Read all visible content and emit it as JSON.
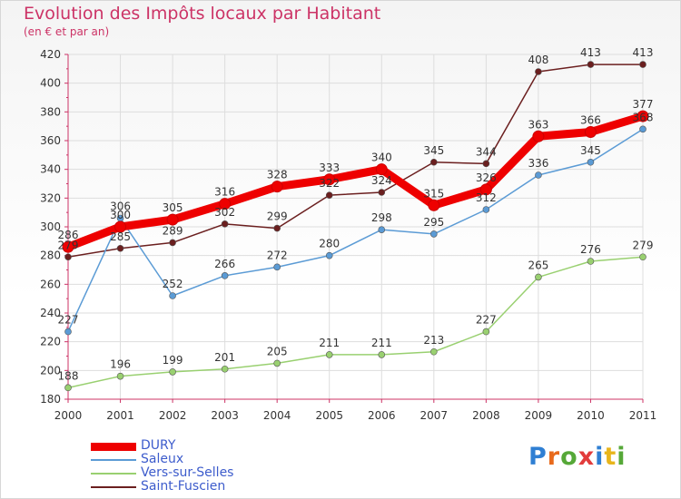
{
  "title": "Evolution des Impôts locaux par Habitant",
  "subtitle": "(en € et par an)",
  "logo": {
    "text": "Proxiti",
    "colors": [
      "#2f7fd3",
      "#e86a1c",
      "#56a838",
      "#e23c3c",
      "#2f7fd3",
      "#e8b51c",
      "#56a838"
    ]
  },
  "chart_data": {
    "type": "line",
    "x": [
      "2000",
      "2001",
      "2002",
      "2003",
      "2004",
      "2005",
      "2006",
      "2007",
      "2008",
      "2009",
      "2010",
      "2011"
    ],
    "ylim": [
      180,
      420
    ],
    "yticks": [
      180,
      200,
      220,
      240,
      260,
      280,
      300,
      320,
      340,
      360,
      380,
      400,
      420
    ],
    "grid": true,
    "legend_position": "bottom-left",
    "series": [
      {
        "name": "DURY",
        "values": [
          286,
          300,
          305,
          316,
          328,
          333,
          340,
          315,
          326,
          363,
          366,
          377
        ],
        "color": "#ee0000",
        "labels": [
          "286",
          "300",
          "305",
          "316",
          "328",
          "333",
          "340",
          "315",
          "326",
          "363",
          "366",
          "377"
        ]
      },
      {
        "name": "Saleux",
        "values": [
          227,
          306,
          252,
          266,
          272,
          280,
          298,
          295,
          312,
          336,
          345,
          368
        ],
        "color": "#5b9bd5",
        "labels": [
          "227",
          "306",
          "252",
          "266",
          "272",
          "280",
          "298",
          "295",
          "312",
          "336",
          "345",
          "368"
        ]
      },
      {
        "name": "Vers-sur-Selles",
        "values": [
          188,
          196,
          199,
          201,
          205,
          211,
          211,
          213,
          227,
          265,
          276,
          279
        ],
        "color": "#99d070",
        "labels": [
          "188",
          "196",
          "199",
          "201",
          "205",
          "211",
          "211",
          "213",
          "227",
          "265",
          "276",
          "279"
        ]
      },
      {
        "name": "Saint-Fuscien",
        "values": [
          279,
          285,
          289,
          302,
          299,
          322,
          324,
          345,
          344,
          408,
          413,
          413
        ],
        "color": "#6b1f1f",
        "labels": [
          "279",
          "285",
          "289",
          "302",
          "299",
          "322",
          "324",
          "345",
          "344",
          "408",
          "413",
          "413"
        ]
      }
    ]
  }
}
